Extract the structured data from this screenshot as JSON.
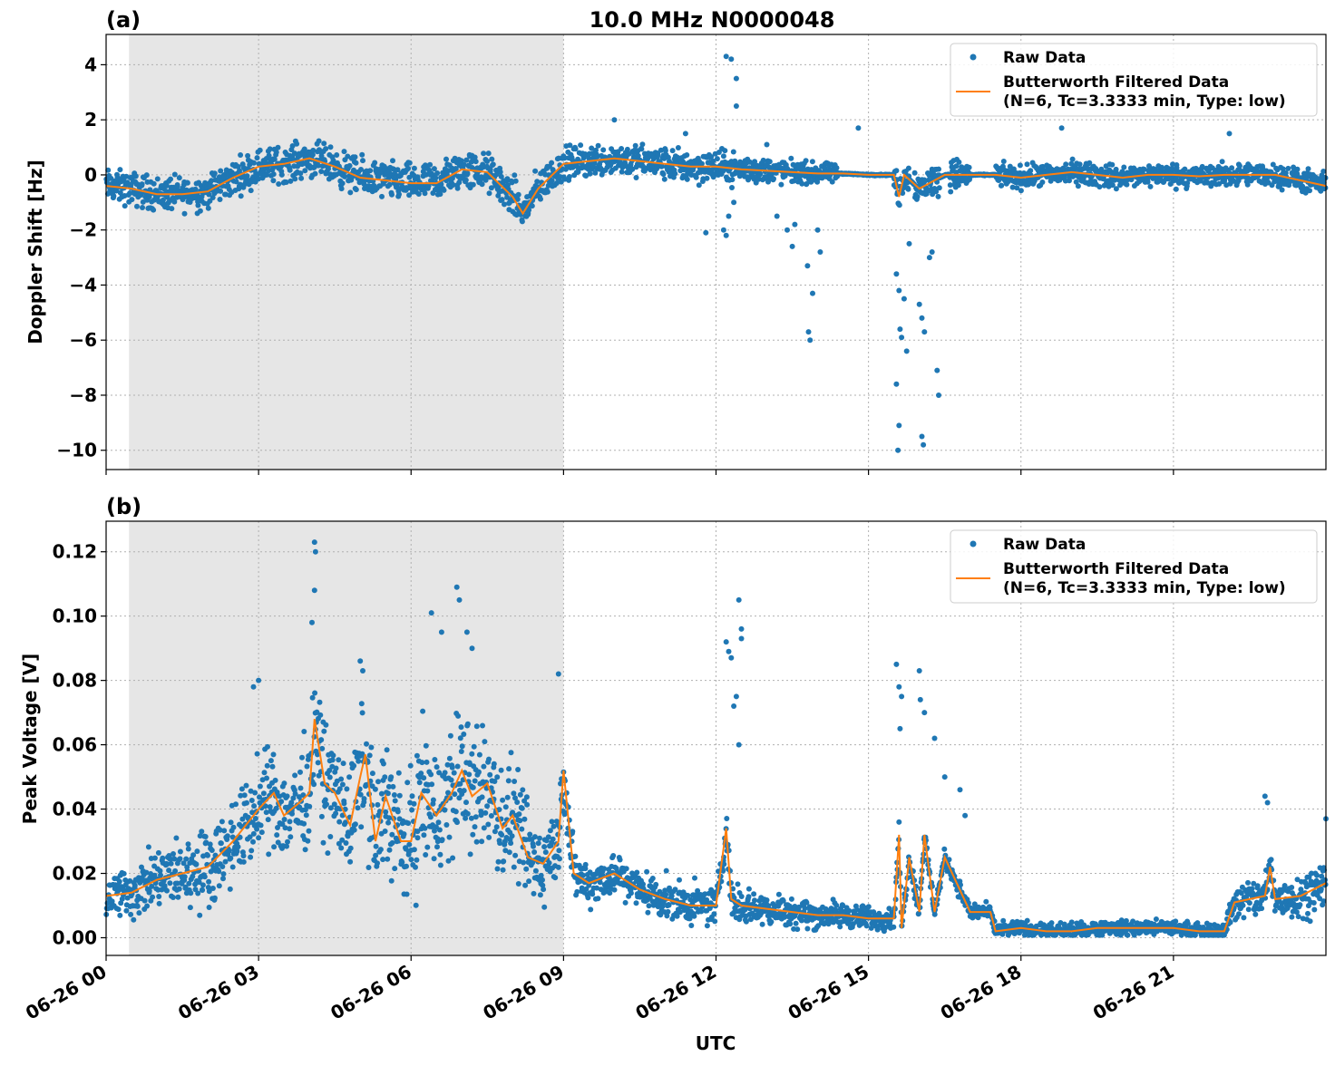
{
  "figure": {
    "title": "10.0 MHz N0000048",
    "xlabel": "UTC",
    "x_tick_labels": [
      "06-26 00",
      "06-26 03",
      "06-26 06",
      "06-26 09",
      "06-26 12",
      "06-26 15",
      "06-26 18",
      "06-26 21"
    ],
    "colors": {
      "raw": "#1f77b4",
      "filtered": "#ff7f0e",
      "shade": "#e6e6e6",
      "grid": "#b0b0b0"
    }
  },
  "legend": {
    "raw_label": "Raw Data",
    "filtered_label_line1": "Butterworth Filtered Data",
    "filtered_label_line2": "(N=6, Tc=3.3333 min, Type: low)",
    "placement": "top-right"
  },
  "panel_a": {
    "tag": "(a)",
    "ylabel": "Doppler Shift [Hz]"
  },
  "panel_b": {
    "tag": "(b)",
    "ylabel": "Peak Voltage [V]"
  },
  "chart_data": [
    {
      "type": "scatter",
      "panel": "(a)",
      "title": "10.0 MHz N0000048",
      "xlabel": "",
      "ylabel": "Doppler Shift [Hz]",
      "x_unit": "hours UTC on 06-26",
      "xlim": [
        0,
        24
      ],
      "ylim": [
        -10.7,
        5.1
      ],
      "yticks": [
        4,
        2,
        0,
        -2,
        -4,
        -6,
        -8,
        -10
      ],
      "ytick_labels": [
        "4",
        "2",
        "0",
        "−2",
        "−4",
        "−6",
        "−8",
        "−10"
      ],
      "grid": true,
      "shaded_interval_hours": [
        0.45,
        9.0
      ],
      "series": [
        {
          "name": "Butterworth Filtered Data",
          "kind": "line",
          "x": [
            0,
            0.5,
            1,
            1.5,
            2,
            2.5,
            3,
            3.5,
            4,
            4.5,
            5,
            5.5,
            6,
            6.5,
            7,
            7.5,
            8,
            8.2,
            8.5,
            9,
            9.5,
            10,
            10.5,
            11,
            11.5,
            12,
            12.5,
            13,
            13.5,
            14,
            14.5,
            15,
            15.5,
            15.6,
            15.7,
            16,
            16.5,
            17,
            17.5,
            18,
            18.5,
            19,
            19.5,
            20,
            20.5,
            21,
            21.5,
            22,
            22.5,
            23,
            23.5,
            24
          ],
          "y": [
            -0.4,
            -0.5,
            -0.7,
            -0.7,
            -0.6,
            -0.1,
            0.3,
            0.4,
            0.6,
            0.3,
            -0.1,
            -0.2,
            -0.3,
            -0.3,
            0.2,
            0.1,
            -0.8,
            -1.4,
            -0.5,
            0.4,
            0.5,
            0.6,
            0.5,
            0.4,
            0.3,
            0.3,
            0.2,
            0.15,
            0.1,
            0.05,
            0.05,
            0.0,
            0.0,
            -0.8,
            0.0,
            -0.5,
            0.0,
            0.0,
            0.0,
            -0.1,
            0.0,
            0.1,
            0.0,
            -0.1,
            0.0,
            0.0,
            -0.05,
            0.0,
            0.0,
            0.0,
            -0.2,
            -0.4
          ]
        },
        {
          "name": "Raw Data",
          "kind": "scatter",
          "spread_around_filtered": [
            [
              0,
              0.5
            ],
            [
              8,
              0.6
            ],
            [
              9,
              0.5
            ],
            [
              12,
              0.5
            ],
            [
              14,
              0.3
            ],
            [
              17.5,
              0.35
            ],
            [
              24,
              0.35
            ]
          ],
          "outliers": [
            [
              12.2,
              4.3
            ],
            [
              12.3,
              4.2
            ],
            [
              12.4,
              3.5
            ],
            [
              12.4,
              2.5
            ],
            [
              12.25,
              -1.5
            ],
            [
              12.15,
              -2.0
            ],
            [
              11.8,
              -2.1
            ],
            [
              12.2,
              -2.2
            ],
            [
              12.35,
              -1.0
            ],
            [
              13.2,
              -1.5
            ],
            [
              13.4,
              -2.0
            ],
            [
              13.5,
              -2.6
            ],
            [
              13.55,
              -1.8
            ],
            [
              13.8,
              -3.3
            ],
            [
              13.82,
              -5.7
            ],
            [
              13.85,
              -6.0
            ],
            [
              13.9,
              -4.3
            ],
            [
              14.0,
              -2.0
            ],
            [
              14.05,
              -2.8
            ],
            [
              14.8,
              1.7
            ],
            [
              13.0,
              1.1
            ],
            [
              15.55,
              -3.6
            ],
            [
              15.6,
              -4.2
            ],
            [
              15.62,
              -5.6
            ],
            [
              15.65,
              -5.9
            ],
            [
              15.55,
              -7.6
            ],
            [
              15.6,
              -9.1
            ],
            [
              15.58,
              -10.0
            ],
            [
              15.7,
              -4.5
            ],
            [
              15.75,
              -6.4
            ],
            [
              15.8,
              -2.5
            ],
            [
              16.0,
              -4.7
            ],
            [
              16.05,
              -5.2
            ],
            [
              16.1,
              -5.7
            ],
            [
              16.05,
              -9.5
            ],
            [
              16.08,
              -9.8
            ],
            [
              16.25,
              -2.8
            ],
            [
              16.35,
              -7.1
            ],
            [
              16.38,
              -8.0
            ],
            [
              16.2,
              -3.0
            ],
            [
              11.4,
              1.5
            ],
            [
              18.8,
              1.7
            ],
            [
              22.1,
              1.5
            ],
            [
              10.0,
              2.0
            ]
          ]
        }
      ]
    },
    {
      "type": "scatter",
      "panel": "(b)",
      "title": "",
      "xlabel": "UTC",
      "ylabel": "Peak Voltage [V]",
      "x_unit": "hours UTC on 06-26",
      "xlim": [
        0,
        24
      ],
      "ylim": [
        -0.0055,
        0.1295
      ],
      "yticks": [
        0.12,
        0.1,
        0.08,
        0.06,
        0.04,
        0.02,
        0.0
      ],
      "ytick_labels": [
        "0.12",
        "0.10",
        "0.08",
        "0.06",
        "0.04",
        "0.02",
        "0.00"
      ],
      "grid": true,
      "shaded_interval_hours": [
        0.45,
        9.0
      ],
      "series": [
        {
          "name": "Butterworth Filtered Data",
          "kind": "line",
          "x": [
            0,
            0.5,
            1,
            1.5,
            2,
            2.5,
            3,
            3.3,
            3.5,
            3.8,
            4,
            4.1,
            4.3,
            4.5,
            4.8,
            5,
            5.1,
            5.3,
            5.5,
            5.8,
            6,
            6.2,
            6.5,
            6.8,
            7,
            7.2,
            7.5,
            7.8,
            8,
            8.3,
            8.6,
            8.9,
            9,
            9.2,
            9.5,
            10,
            10.5,
            11,
            11.5,
            12,
            12.2,
            12.3,
            12.5,
            13,
            13.5,
            14,
            14.5,
            15,
            15.5,
            15.6,
            15.65,
            15.8,
            16,
            16.1,
            16.3,
            16.5,
            17,
            17.4,
            17.5,
            18,
            18.5,
            19,
            19.5,
            20,
            20.5,
            21,
            21.5,
            22,
            22.2,
            22.5,
            22.8,
            22.9,
            23,
            23.5,
            24
          ],
          "y": [
            0.013,
            0.014,
            0.018,
            0.02,
            0.022,
            0.03,
            0.04,
            0.045,
            0.038,
            0.042,
            0.045,
            0.068,
            0.048,
            0.045,
            0.035,
            0.05,
            0.057,
            0.03,
            0.044,
            0.03,
            0.03,
            0.045,
            0.038,
            0.045,
            0.052,
            0.044,
            0.048,
            0.034,
            0.038,
            0.025,
            0.023,
            0.03,
            0.052,
            0.02,
            0.017,
            0.02,
            0.015,
            0.012,
            0.01,
            0.01,
            0.034,
            0.012,
            0.01,
            0.009,
            0.008,
            0.007,
            0.007,
            0.006,
            0.006,
            0.032,
            0.003,
            0.025,
            0.008,
            0.032,
            0.008,
            0.025,
            0.008,
            0.008,
            0.002,
            0.003,
            0.002,
            0.002,
            0.003,
            0.003,
            0.003,
            0.003,
            0.002,
            0.002,
            0.011,
            0.012,
            0.013,
            0.022,
            0.012,
            0.013,
            0.017
          ]
        },
        {
          "name": "Raw Data",
          "kind": "scatter",
          "spread_around_filtered": [
            [
              0,
              0.006
            ],
            [
              3,
              0.012
            ],
            [
              5,
              0.016
            ],
            [
              7,
              0.018
            ],
            [
              9,
              0.01
            ],
            [
              9.3,
              0.006
            ],
            [
              12,
              0.005
            ],
            [
              15,
              0.003
            ],
            [
              17.5,
              0.002
            ],
            [
              22,
              0.002
            ],
            [
              22.2,
              0.005
            ],
            [
              24,
              0.006
            ]
          ],
          "outliers": [
            [
              4.1,
              0.123
            ],
            [
              4.12,
              0.12
            ],
            [
              4.1,
              0.108
            ],
            [
              4.05,
              0.098
            ],
            [
              5.0,
              0.086
            ],
            [
              5.05,
              0.083
            ],
            [
              6.4,
              0.101
            ],
            [
              6.6,
              0.095
            ],
            [
              6.9,
              0.109
            ],
            [
              6.95,
              0.105
            ],
            [
              7.1,
              0.095
            ],
            [
              7.2,
              0.09
            ],
            [
              3.0,
              0.08
            ],
            [
              2.9,
              0.078
            ],
            [
              8.9,
              0.082
            ],
            [
              12.2,
              0.092
            ],
            [
              12.25,
              0.089
            ],
            [
              12.3,
              0.087
            ],
            [
              12.45,
              0.105
            ],
            [
              12.5,
              0.096
            ],
            [
              12.5,
              0.093
            ],
            [
              12.4,
              0.075
            ],
            [
              12.35,
              0.072
            ],
            [
              12.45,
              0.06
            ],
            [
              15.55,
              0.085
            ],
            [
              15.6,
              0.078
            ],
            [
              15.65,
              0.075
            ],
            [
              15.62,
              0.065
            ],
            [
              16.0,
              0.083
            ],
            [
              16.02,
              0.074
            ],
            [
              16.1,
              0.07
            ],
            [
              16.3,
              0.062
            ],
            [
              16.5,
              0.05
            ],
            [
              16.8,
              0.046
            ],
            [
              16.9,
              0.038
            ],
            [
              22.8,
              0.044
            ],
            [
              22.85,
              0.042
            ],
            [
              24,
              0.037
            ]
          ]
        }
      ]
    }
  ]
}
